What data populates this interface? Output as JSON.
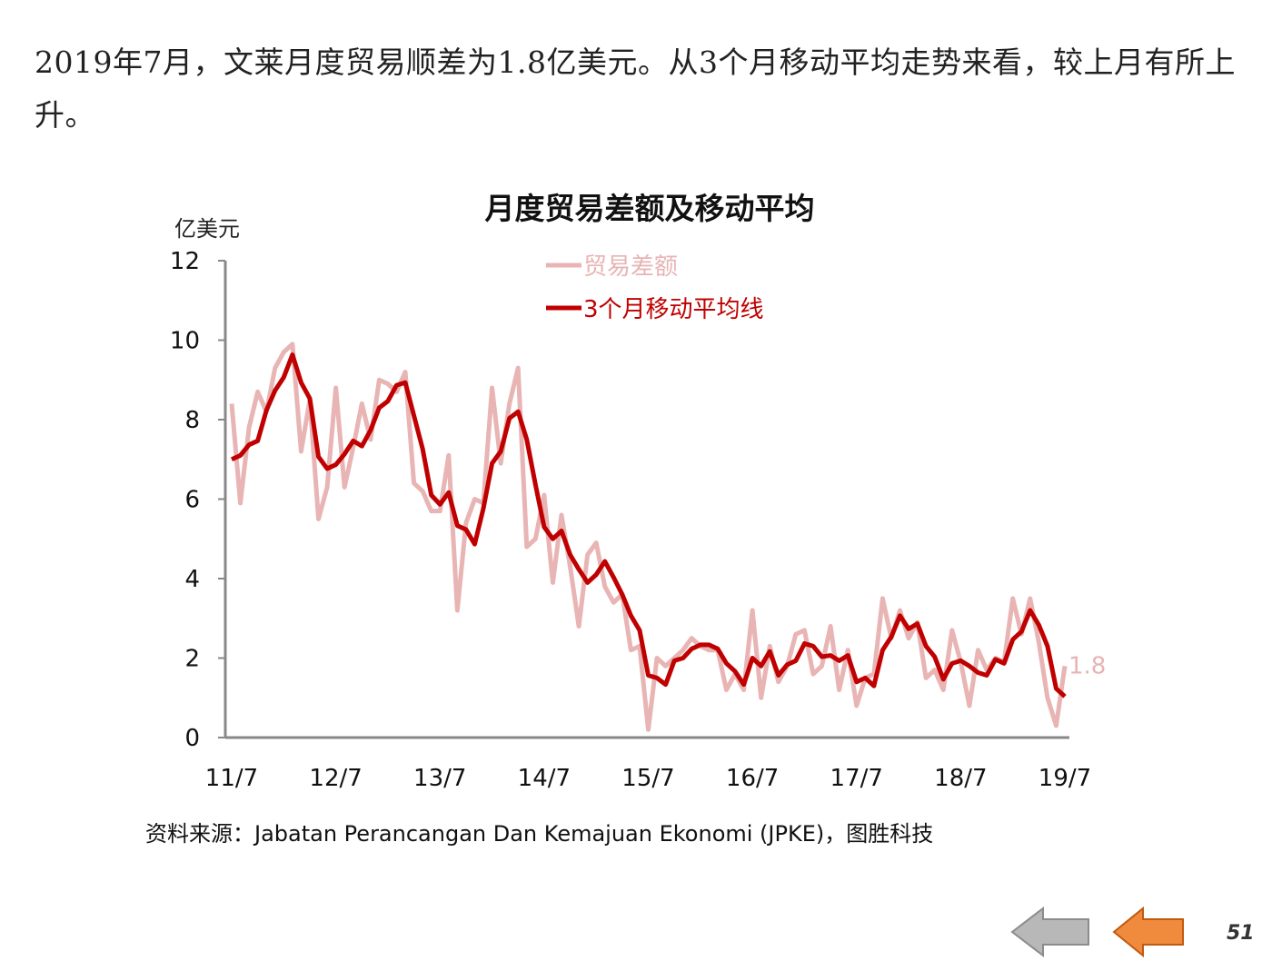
{
  "paragraph": "2019年7月，文莱月度贸易顺差为1.8亿美元。从3个月移动平均走势来看，较上月有所上升。",
  "source": "资料来源：Jabatan Perancangan Dan Kemajuan Ekonomi (JPKE)，图胜科技",
  "page_number": "51",
  "nav": {
    "back_icon": "arrow-left-gray",
    "prev_icon": "arrow-left-orange"
  },
  "chart_data": {
    "type": "line",
    "title": "月度贸易差额及移动平均",
    "ylabel": "亿美元",
    "xlabel": "",
    "ylim": [
      0,
      12
    ],
    "yticks": [
      "0",
      "2",
      "4",
      "6",
      "8",
      "10",
      "12"
    ],
    "xtick_labels": [
      "11/7",
      "12/7",
      "13/7",
      "14/7",
      "15/7",
      "16/7",
      "17/7",
      "18/7",
      "19/7"
    ],
    "legend": [
      "贸易差额",
      "3个月移动平均线"
    ],
    "legend_placement": "top-center",
    "grid": false,
    "end_label": "1.8",
    "ma_window": 3,
    "ma_first": 7.0,
    "colors": {
      "trade": "#e8b4b4",
      "ma": "#c00000",
      "axis": "#888888"
    },
    "series": [
      {
        "name": "贸易差额",
        "values": [
          8.4,
          5.9,
          7.8,
          8.7,
          8.2,
          9.3,
          9.7,
          9.9,
          7.2,
          8.5,
          5.5,
          6.3,
          8.8,
          6.3,
          7.3,
          8.4,
          7.5,
          9.0,
          8.9,
          8.7,
          9.2,
          6.4,
          6.2,
          5.7,
          5.7,
          7.1,
          3.2,
          5.4,
          6.0,
          5.9,
          8.8,
          6.9,
          8.4,
          9.3,
          4.8,
          5.0,
          6.1,
          3.9,
          5.6,
          4.3,
          2.8,
          4.6,
          4.9,
          3.8,
          3.4,
          3.6,
          2.2,
          2.3,
          0.2,
          2.0,
          1.8,
          2.0,
          2.2,
          2.5,
          2.3,
          2.2,
          2.2,
          1.2,
          1.6,
          1.2,
          3.2,
          1.0,
          2.3,
          1.4,
          1.8,
          2.6,
          2.7,
          1.6,
          1.8,
          2.8,
          1.2,
          2.2,
          0.8,
          1.5,
          1.6,
          3.5,
          2.5,
          3.2,
          2.5,
          2.9,
          1.5,
          1.7,
          1.2,
          2.7,
          1.9,
          0.8,
          2.2,
          1.7,
          2.0,
          1.9,
          3.5,
          2.6,
          3.5,
          2.4,
          1.0,
          0.3,
          1.8
        ]
      }
    ]
  }
}
